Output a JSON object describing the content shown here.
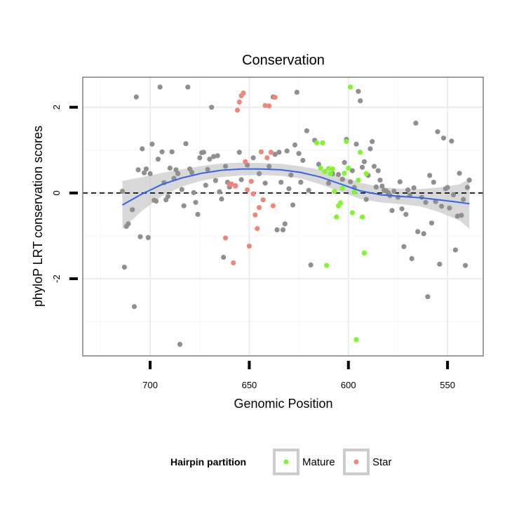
{
  "chart_data": {
    "type": "scatter",
    "title": "Conservation",
    "xlabel": "Genomic Position",
    "ylabel": "phyloP LRT conservation scores",
    "x_reversed": true,
    "xlim": [
      734,
      532
    ],
    "ylim": [
      -3.8,
      2.7
    ],
    "x_ticks": [
      700,
      650,
      600,
      550
    ],
    "y_ticks": [
      -2,
      0,
      2
    ],
    "grid": true,
    "reference_line": {
      "y": 0,
      "style": "dashed"
    },
    "legend": {
      "title": "Hairpin partition",
      "position": "bottom",
      "entries": [
        {
          "name": "Mature",
          "color": "#7ff72b"
        },
        {
          "name": "Star",
          "color": "#f0857a"
        }
      ]
    },
    "series": [
      {
        "color": "#8f8f8f",
        "points": [
          [
            714,
            0.04
          ],
          [
            713,
            -1.73
          ],
          [
            712,
            -0.78
          ],
          [
            711,
            -0.72
          ],
          [
            709,
            -0.39
          ],
          [
            708,
            -2.65
          ],
          [
            707,
            2.24
          ],
          [
            706,
            0.54
          ],
          [
            705,
            -1.02
          ],
          [
            704,
            1.03
          ],
          [
            703,
            0.47
          ],
          [
            702,
            0.56
          ],
          [
            701,
            -1.04
          ],
          [
            700,
            0.45
          ],
          [
            699,
            1.14
          ],
          [
            698,
            -0.17
          ],
          [
            697,
            -0.19
          ],
          [
            696,
            0.79
          ],
          [
            695,
            2.47
          ],
          [
            694,
            0.96
          ],
          [
            693,
            0.24
          ],
          [
            692,
            -0.16
          ],
          [
            691,
            -0.08
          ],
          [
            690,
            0.58
          ],
          [
            689,
            0.96
          ],
          [
            688,
            0.34
          ],
          [
            687,
            0.54
          ],
          [
            686,
            0.45
          ],
          [
            685,
            -3.53
          ],
          [
            684,
            0.08
          ],
          [
            683,
            -0.3
          ],
          [
            682,
            1.15
          ],
          [
            681,
            2.47
          ],
          [
            680,
            0.56
          ],
          [
            679,
            0.48
          ],
          [
            678,
            0.01
          ],
          [
            677,
            -0.22
          ],
          [
            676,
            -0.5
          ],
          [
            675,
            0.82
          ],
          [
            674,
            0.94
          ],
          [
            673,
            0.95
          ],
          [
            672,
            0.18
          ],
          [
            671,
            0.55
          ],
          [
            670,
            0.79
          ],
          [
            669,
            2.0
          ],
          [
            668,
            0.85
          ],
          [
            667,
            0.29
          ],
          [
            666,
            0.87
          ],
          [
            665,
            0.03
          ],
          [
            664,
            -0.14
          ],
          [
            663,
            -1.5
          ],
          [
            662,
            0.62
          ],
          [
            661,
            0.25
          ],
          [
            660,
            0.14
          ],
          [
            657,
            0.17
          ],
          [
            655,
            0.95
          ],
          [
            654,
            0.31
          ],
          [
            651,
            0.65
          ],
          [
            648,
            0.82
          ],
          [
            645,
            0.45
          ],
          [
            642,
            0.23
          ],
          [
            640,
            0.62
          ],
          [
            638,
            2.24
          ],
          [
            637,
            0.9
          ],
          [
            636,
            -0.86
          ],
          [
            635,
            0.95
          ],
          [
            634,
            0.25
          ],
          [
            633,
            -0.86
          ],
          [
            632,
            -0.72
          ],
          [
            631,
            0.98
          ],
          [
            630,
            0.1
          ],
          [
            629,
            0.42
          ],
          [
            628,
            -0.28
          ],
          [
            627,
            1.12
          ],
          [
            626,
            2.35
          ],
          [
            625,
            0.92
          ],
          [
            624,
            0.25
          ],
          [
            623,
            0.76
          ],
          [
            621,
            1.45
          ],
          [
            620,
            0.06
          ],
          [
            619,
            -1.68
          ],
          [
            617,
            1.23
          ],
          [
            615,
            0.67
          ],
          [
            610,
            0.23
          ],
          [
            608,
            0.45
          ],
          [
            605,
            0.43
          ],
          [
            603,
            0.32
          ],
          [
            602,
            0.71
          ],
          [
            601,
            1.25
          ],
          [
            599,
            0.26
          ],
          [
            598,
            0.52
          ],
          [
            597,
            0.13
          ],
          [
            596,
            1.14
          ],
          [
            595,
            2.37
          ],
          [
            594,
            2.15
          ],
          [
            593,
            0.6
          ],
          [
            592,
            0.73
          ],
          [
            591,
            -0.15
          ],
          [
            590,
            0.41
          ],
          [
            589,
            1.03
          ],
          [
            588,
            1.2
          ],
          [
            587,
            0.62
          ],
          [
            586,
            0.14
          ],
          [
            585,
            0.52
          ],
          [
            584,
            0.3
          ],
          [
            583,
            0.16
          ],
          [
            582,
            0.06
          ],
          [
            581,
            0.05
          ],
          [
            580,
            0.01
          ],
          [
            579,
            -0.06
          ],
          [
            578,
            -0.41
          ],
          [
            577,
            0.04
          ],
          [
            575,
            -0.1
          ],
          [
            574,
            0.26
          ],
          [
            573,
            -0.37
          ],
          [
            572,
            -1.25
          ],
          [
            571,
            -0.5
          ],
          [
            570,
            0.07
          ],
          [
            569,
            -0.05
          ],
          [
            568,
            -1.53
          ],
          [
            567,
            0.12
          ],
          [
            566,
            1.63
          ],
          [
            565,
            -0.9
          ],
          [
            563,
            -0.1
          ],
          [
            562,
            -0.95
          ],
          [
            561,
            -0.22
          ],
          [
            560,
            -2.42
          ],
          [
            559,
            0.41
          ],
          [
            558,
            -0.7
          ],
          [
            557,
            0.25
          ],
          [
            556,
            -0.2
          ],
          [
            555,
            1.43
          ],
          [
            554,
            -1.66
          ],
          [
            553,
            -0.31
          ],
          [
            552,
            1.28
          ],
          [
            551,
            0.1
          ],
          [
            550,
            0.13
          ],
          [
            549,
            -0.35
          ],
          [
            548,
            1.21
          ],
          [
            547,
            -0.04
          ],
          [
            546,
            -1.33
          ],
          [
            545,
            -0.54
          ],
          [
            544,
            0.46
          ],
          [
            543,
            -0.52
          ],
          [
            542,
            -0.15
          ],
          [
            541,
            -1.69
          ],
          [
            540,
            0.13
          ],
          [
            539,
            0.3
          ]
        ]
      },
      {
        "name": "Mature",
        "color": "#7ff72b",
        "points": [
          [
            616,
            1.17
          ],
          [
            614,
            0.58
          ],
          [
            613,
            1.17
          ],
          [
            612,
            0.5
          ],
          [
            611,
            -1.69
          ],
          [
            610,
            0.57
          ],
          [
            609,
            0.45
          ],
          [
            608,
            0.56
          ],
          [
            607,
            0.04
          ],
          [
            606,
            -0.56
          ],
          [
            605,
            -0.3
          ],
          [
            604,
            -0.23
          ],
          [
            603,
            0.11
          ],
          [
            602,
            0.46
          ],
          [
            601,
            1.2
          ],
          [
            600,
            0.58
          ],
          [
            599,
            2.47
          ],
          [
            598,
            -0.46
          ],
          [
            597,
            0.02
          ],
          [
            596,
            -3.42
          ],
          [
            595,
            0.3
          ],
          [
            594,
            0.95
          ],
          [
            593,
            -0.56
          ],
          [
            592,
            -1.4
          ],
          [
            591,
            0.45
          ]
        ]
      },
      {
        "name": "Star",
        "color": "#f0857a",
        "points": [
          [
            662,
            -1.05
          ],
          [
            660,
            0.2
          ],
          [
            659,
            0.21
          ],
          [
            658,
            -1.63
          ],
          [
            657,
            0.16
          ],
          [
            656,
            1.93
          ],
          [
            655,
            2.12
          ],
          [
            654,
            2.27
          ],
          [
            653,
            2.33
          ],
          [
            652,
            0.73
          ],
          [
            651,
            0.07
          ],
          [
            650,
            -1.24
          ],
          [
            649,
            0.27
          ],
          [
            648,
            -0.02
          ],
          [
            647,
            -0.51
          ],
          [
            646,
            -0.83
          ],
          [
            645,
            -0.34
          ],
          [
            644,
            0.96
          ],
          [
            643,
            -0.16
          ],
          [
            642,
            2.04
          ],
          [
            641,
            0.82
          ],
          [
            640,
            2.03
          ],
          [
            639,
            0.95
          ],
          [
            638,
            -0.3
          ],
          [
            637,
            2.23
          ]
        ]
      }
    ],
    "smooth": {
      "color": "#3465e8",
      "x": [
        714,
        704,
        694,
        684,
        674,
        664,
        654,
        644,
        634,
        624,
        614,
        604,
        594,
        584,
        574,
        564,
        554,
        544,
        539
      ],
      "y": [
        -0.28,
        -0.02,
        0.2,
        0.35,
        0.46,
        0.53,
        0.56,
        0.56,
        0.54,
        0.48,
        0.37,
        0.21,
        0.05,
        -0.04,
        -0.08,
        -0.11,
        -0.16,
        -0.22,
        -0.25
      ],
      "lower": [
        -0.84,
        -0.41,
        -0.07,
        0.15,
        0.29,
        0.37,
        0.41,
        0.42,
        0.4,
        0.34,
        0.2,
        0.03,
        -0.14,
        -0.22,
        -0.26,
        -0.31,
        -0.45,
        -0.64,
        -0.83
      ],
      "upper": [
        0.28,
        0.37,
        0.47,
        0.55,
        0.63,
        0.69,
        0.71,
        0.7,
        0.68,
        0.62,
        0.54,
        0.39,
        0.24,
        0.14,
        0.1,
        0.09,
        0.13,
        0.2,
        0.33
      ]
    }
  }
}
